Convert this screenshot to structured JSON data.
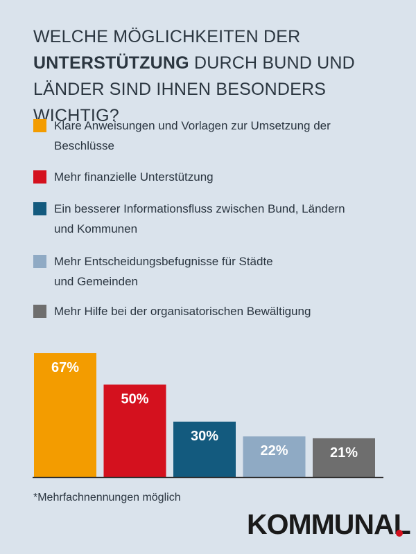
{
  "header": {
    "title_line1": "WELCHE MÖGLICHKEITEN DER",
    "title_bold": "UNTERSTÜTZUNG",
    "title_line2_rest": " DURCH BUND UND",
    "title_line3": "LÄNDER SIND IHNEN BESONDERS WICHTIG?"
  },
  "legend": [
    {
      "label": "Klare Anweisungen und Vorlagen zur Umsetzung der Beschlüsse",
      "color": "#f39c00"
    },
    {
      "label": "Mehr finanzielle Unterstützung",
      "color": "#d4111e"
    },
    {
      "label": "Ein besserer Informationsfluss zwischen Bund, Ländern und Kommunen",
      "color": "#135a7e"
    },
    {
      "label": "Mehr Entscheidungsbefugnisse für Städte und Gemeinden",
      "color": "#8faac4"
    },
    {
      "label": "Mehr Hilfe bei der organisatorischen Bewältigung",
      "color": "#6e6e6e"
    }
  ],
  "chart_data": {
    "type": "bar",
    "categories": [
      "Klare Anweisungen und Vorlagen zur Umsetzung der Beschlüsse",
      "Mehr finanzielle Unterstützung",
      "Ein besserer Informationsfluss zwischen Bund, Ländern und Kommunen",
      "Mehr Entscheidungsbefugnisse für Städte und Gemeinden",
      "Mehr Hilfe bei der organisatorischen Bewältigung"
    ],
    "values": [
      67,
      50,
      30,
      22,
      21
    ],
    "value_labels": [
      "67%",
      "50%",
      "30%",
      "22%",
      "21%"
    ],
    "colors": [
      "#f39c00",
      "#d4111e",
      "#135a7e",
      "#8faac4",
      "#6e6e6e"
    ],
    "ylim": [
      0,
      67
    ],
    "title": "WELCHE MÖGLICHKEITEN DER UNTERSTÜTZUNG DURCH BUND UND LÄNDER SIND IHNEN BESONDERS WICHTIG?",
    "xlabel": "",
    "ylabel": ""
  },
  "footnote": "*Mehrfachnennungen möglich",
  "brand": {
    "name": "KOMMUNAL",
    "dot_color": "#d4111e"
  }
}
